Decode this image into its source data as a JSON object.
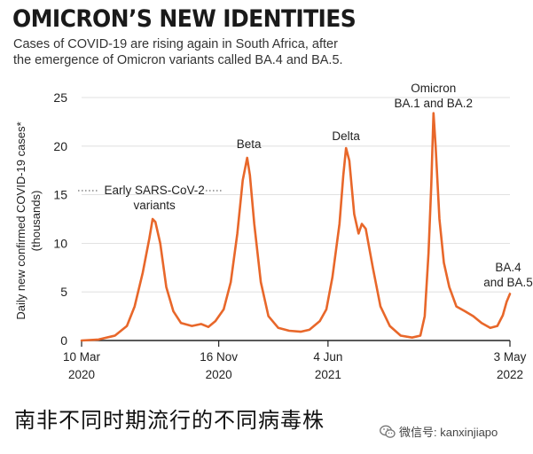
{
  "header": {
    "title": "OMICRON’S NEW IDENTITIES",
    "subtitle_lines": [
      "Cases of COVID-19 are rising again in South Africa, after",
      "the emergence of Omicron variants called BA.4 and BA.5."
    ]
  },
  "caption": "南非不同时期流行的不同病毒株",
  "watermark": {
    "text": "微信号: kanxinjiapo",
    "icon": "wechat-icon"
  },
  "colors": {
    "line": "#e8672a",
    "axis": "#222222",
    "grid": "#d9d9d9"
  },
  "chart_data": {
    "type": "line",
    "title": "OMICRON’S NEW IDENTITIES",
    "ylabel_lines": [
      "Daily new confirmed COVID-19 cases*",
      "(thousands)"
    ],
    "xlabel": "",
    "ylim": [
      0,
      25
    ],
    "yticks": [
      0,
      5,
      10,
      15,
      20,
      25
    ],
    "xlim": [
      "2020-03-10",
      "2022-05-03"
    ],
    "xticks": [
      {
        "date": "2020-03-10",
        "label_line1": "10 Mar",
        "label_line2": "2020"
      },
      {
        "date": "2020-11-16",
        "label_line1": "16 Nov",
        "label_line2": "2020"
      },
      {
        "date": "2021-06-04",
        "label_line1": "4 Jun",
        "label_line2": "2021"
      },
      {
        "date": "2022-05-03",
        "label_line1": "3 May",
        "label_line2": "2022"
      }
    ],
    "grid": true,
    "series": [
      {
        "values_in": "thousands",
        "points": [
          [
            "2020-03-10",
            0.0
          ],
          [
            "2020-04-10",
            0.1
          ],
          [
            "2020-05-10",
            0.5
          ],
          [
            "2020-06-01",
            1.5
          ],
          [
            "2020-06-15",
            3.5
          ],
          [
            "2020-06-30",
            7.0
          ],
          [
            "2020-07-12",
            10.5
          ],
          [
            "2020-07-18",
            12.5
          ],
          [
            "2020-07-23",
            12.2
          ],
          [
            "2020-08-01",
            10.0
          ],
          [
            "2020-08-12",
            5.5
          ],
          [
            "2020-08-25",
            3.0
          ],
          [
            "2020-09-08",
            1.8
          ],
          [
            "2020-09-28",
            1.5
          ],
          [
            "2020-10-15",
            1.7
          ],
          [
            "2020-10-28",
            1.4
          ],
          [
            "2020-11-10",
            2.0
          ],
          [
            "2020-11-25",
            3.2
          ],
          [
            "2020-12-08",
            6.0
          ],
          [
            "2020-12-20",
            11.0
          ],
          [
            "2020-12-30",
            16.5
          ],
          [
            "2021-01-07",
            18.8
          ],
          [
            "2021-01-12",
            17.0
          ],
          [
            "2021-01-20",
            12.0
          ],
          [
            "2021-02-01",
            6.0
          ],
          [
            "2021-02-15",
            2.5
          ],
          [
            "2021-03-05",
            1.3
          ],
          [
            "2021-03-25",
            1.0
          ],
          [
            "2021-04-15",
            0.9
          ],
          [
            "2021-05-01",
            1.1
          ],
          [
            "2021-05-20",
            2.0
          ],
          [
            "2021-06-01",
            3.2
          ],
          [
            "2021-06-12",
            6.5
          ],
          [
            "2021-06-25",
            12.0
          ],
          [
            "2021-07-02",
            17.0
          ],
          [
            "2021-07-07",
            19.8
          ],
          [
            "2021-07-13",
            18.5
          ],
          [
            "2021-07-22",
            13.0
          ],
          [
            "2021-07-30",
            11.0
          ],
          [
            "2021-08-05",
            12.0
          ],
          [
            "2021-08-12",
            11.5
          ],
          [
            "2021-08-25",
            7.5
          ],
          [
            "2021-09-08",
            3.5
          ],
          [
            "2021-09-25",
            1.5
          ],
          [
            "2021-10-15",
            0.5
          ],
          [
            "2021-11-05",
            0.3
          ],
          [
            "2021-11-20",
            0.5
          ],
          [
            "2021-11-28",
            2.5
          ],
          [
            "2021-12-05",
            9.0
          ],
          [
            "2021-12-10",
            16.0
          ],
          [
            "2021-12-14",
            23.4
          ],
          [
            "2021-12-18",
            20.0
          ],
          [
            "2021-12-25",
            12.5
          ],
          [
            "2022-01-02",
            8.0
          ],
          [
            "2022-01-12",
            5.5
          ],
          [
            "2022-01-25",
            3.5
          ],
          [
            "2022-02-10",
            3.0
          ],
          [
            "2022-02-25",
            2.5
          ],
          [
            "2022-03-12",
            1.8
          ],
          [
            "2022-03-28",
            1.3
          ],
          [
            "2022-04-10",
            1.5
          ],
          [
            "2022-04-20",
            2.6
          ],
          [
            "2022-04-27",
            4.0
          ],
          [
            "2022-05-03",
            4.8
          ]
        ]
      }
    ],
    "annotations": [
      {
        "date": "2020-07-18",
        "lines": [
          "Early SARS-CoV-2",
          "variants"
        ]
      },
      {
        "date": "2021-01-07",
        "lines": [
          "Beta"
        ]
      },
      {
        "date": "2021-07-07",
        "lines": [
          "Delta"
        ]
      },
      {
        "date": "2021-12-14",
        "lines": [
          "Omicron",
          "BA.1 and BA.2"
        ]
      },
      {
        "date": "2022-05-03",
        "lines": [
          "BA.4",
          "and BA.5"
        ]
      }
    ]
  }
}
